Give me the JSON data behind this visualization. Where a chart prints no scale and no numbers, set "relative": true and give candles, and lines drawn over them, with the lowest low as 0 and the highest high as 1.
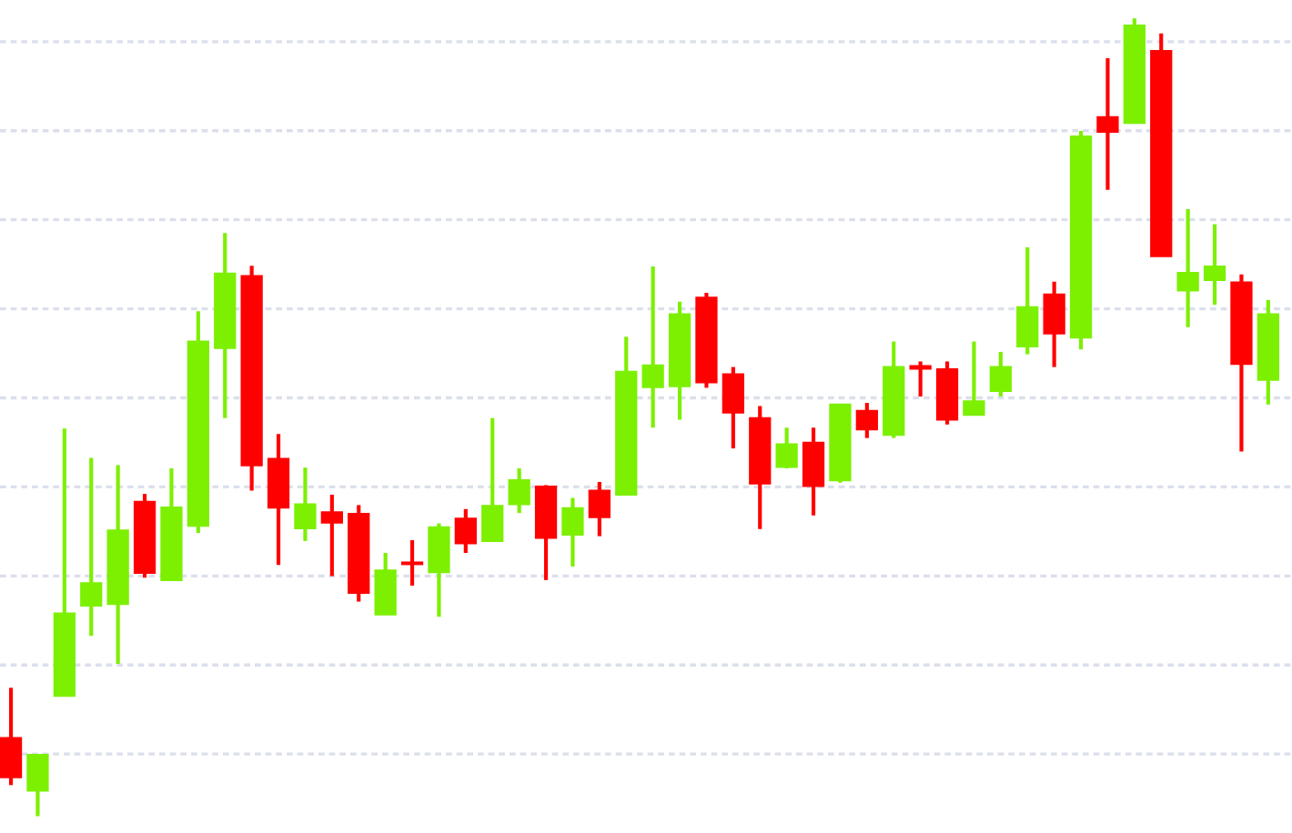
{
  "chart_data": {
    "type": "candlestick",
    "relative": true,
    "grid": "y",
    "categories": [
      null,
      null,
      null,
      null,
      null,
      null,
      null,
      null,
      null,
      null,
      null,
      null,
      null,
      null,
      null,
      null,
      null,
      null,
      null,
      null,
      null,
      null,
      null,
      null,
      null,
      null,
      null,
      null,
      null,
      null,
      null,
      null,
      null,
      null,
      null,
      null,
      null,
      null,
      null,
      null,
      null,
      null,
      null,
      null,
      null,
      null,
      null,
      null
    ],
    "ohlc": [
      [
        0.098,
        0.161,
        0.039,
        0.049
      ],
      [
        0.032,
        0.077,
        0.0,
        0.077
      ],
      [
        0.151,
        0.486,
        0.151,
        0.254
      ],
      [
        0.264,
        0.449,
        0.226,
        0.292
      ],
      [
        0.266,
        0.44,
        0.191,
        0.358
      ],
      [
        0.394,
        0.404,
        0.299,
        0.305
      ],
      [
        0.296,
        0.436,
        0.296,
        0.387
      ],
      [
        0.364,
        0.633,
        0.355,
        0.595
      ],
      [
        0.587,
        0.731,
        0.499,
        0.68
      ],
      [
        0.677,
        0.69,
        0.408,
        0.44
      ],
      [
        0.448,
        0.479,
        0.315,
        0.387
      ],
      [
        0.361,
        0.437,
        0.345,
        0.391
      ],
      [
        0.381,
        0.403,
        0.301,
        0.368
      ],
      [
        0.379,
        0.39,
        0.269,
        0.28
      ],
      [
        0.253,
        0.33,
        0.253,
        0.308
      ],
      [
        0.318,
        0.346,
        0.289,
        0.316
      ],
      [
        0.306,
        0.367,
        0.25,
        0.362
      ],
      [
        0.373,
        0.385,
        0.33,
        0.342
      ],
      [
        0.345,
        0.499,
        0.345,
        0.389
      ],
      [
        0.391,
        0.436,
        0.38,
        0.421
      ],
      [
        0.413,
        0.415,
        0.296,
        0.349
      ],
      [
        0.353,
        0.399,
        0.313,
        0.386
      ],
      [
        0.408,
        0.419,
        0.351,
        0.375
      ],
      [
        0.403,
        0.601,
        0.403,
        0.557
      ],
      [
        0.538,
        0.689,
        0.487,
        0.565
      ],
      [
        0.539,
        0.645,
        0.497,
        0.629
      ],
      [
        0.65,
        0.656,
        0.537,
        0.544
      ],
      [
        0.554,
        0.563,
        0.461,
        0.506
      ],
      [
        0.499,
        0.514,
        0.36,
        0.417
      ],
      [
        0.438,
        0.487,
        0.436,
        0.466
      ],
      [
        0.468,
        0.487,
        0.377,
        0.414
      ],
      [
        0.421,
        0.516,
        0.418,
        0.516
      ],
      [
        0.508,
        0.518,
        0.474,
        0.485
      ],
      [
        0.478,
        0.595,
        0.474,
        0.563
      ],
      [
        0.564,
        0.57,
        0.526,
        0.561
      ],
      [
        0.56,
        0.57,
        0.491,
        0.497
      ],
      [
        0.503,
        0.595,
        0.503,
        0.52
      ],
      [
        0.533,
        0.582,
        0.526,
        0.563
      ],
      [
        0.589,
        0.713,
        0.579,
        0.638
      ],
      [
        0.654,
        0.67,
        0.563,
        0.605
      ],
      [
        0.6,
        0.859,
        0.585,
        0.852
      ],
      [
        0.876,
        0.95,
        0.785,
        0.858
      ],
      [
        0.869,
        1.0,
        0.869,
        0.991
      ],
      [
        0.959,
        0.981,
        0.702,
        0.702
      ],
      [
        0.659,
        0.761,
        0.613,
        0.681
      ],
      [
        0.672,
        0.742,
        0.641,
        0.689
      ],
      [
        0.669,
        0.679,
        0.457,
        0.567
      ],
      [
        0.547,
        0.647,
        0.516,
        0.629
      ]
    ],
    "colors": [
      "#ff0000",
      "#7cf000",
      "#7cf000",
      "#7cf000",
      "#7cf000",
      "#ff0000",
      "#7cf000",
      "#7cf000",
      "#7cf000",
      "#ff0000",
      "#ff0000",
      "#7cf000",
      "#ff0000",
      "#ff0000",
      "#7cf000",
      "#ff0000",
      "#7cf000",
      "#ff0000",
      "#7cf000",
      "#7cf000",
      "#ff0000",
      "#7cf000",
      "#ff0000",
      "#7cf000",
      "#7cf000",
      "#7cf000",
      "#ff0000",
      "#ff0000",
      "#ff0000",
      "#7cf000",
      "#ff0000",
      "#7cf000",
      "#ff0000",
      "#7cf000",
      "#ff0000",
      "#ff0000",
      "#7cf000",
      "#7cf000",
      "#7cf000",
      "#ff0000",
      "#7cf000",
      "#ff0000",
      "#7cf000",
      "#ff0000",
      "#7cf000",
      "#7cf000",
      "#ff0000",
      "#7cf000"
    ]
  }
}
